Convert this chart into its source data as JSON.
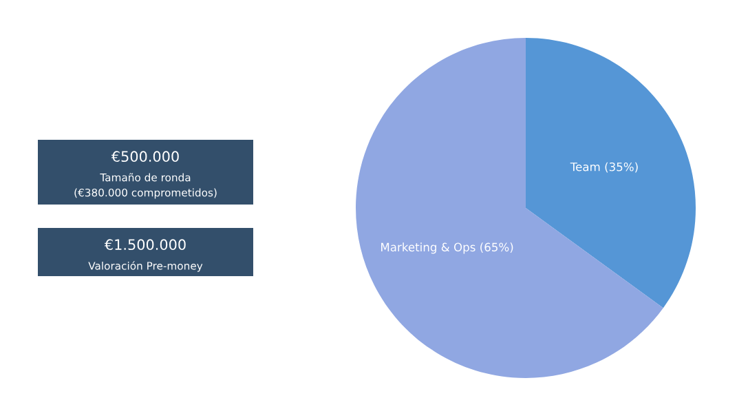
{
  "chart_data": [
    {
      "type": "other",
      "annotations": [
        "€500.000\nTamaño de ronda\n(€380.000 comprometidos)",
        "€1.500.000\nValoración Pre-money"
      ]
    },
    {
      "type": "pie",
      "categories": [
        "Team (35%)",
        "Marketing & Ops (65%)"
      ],
      "values": [
        35,
        65
      ],
      "colors": [
        "#5596d6",
        "#90a7e2"
      ]
    }
  ]
}
